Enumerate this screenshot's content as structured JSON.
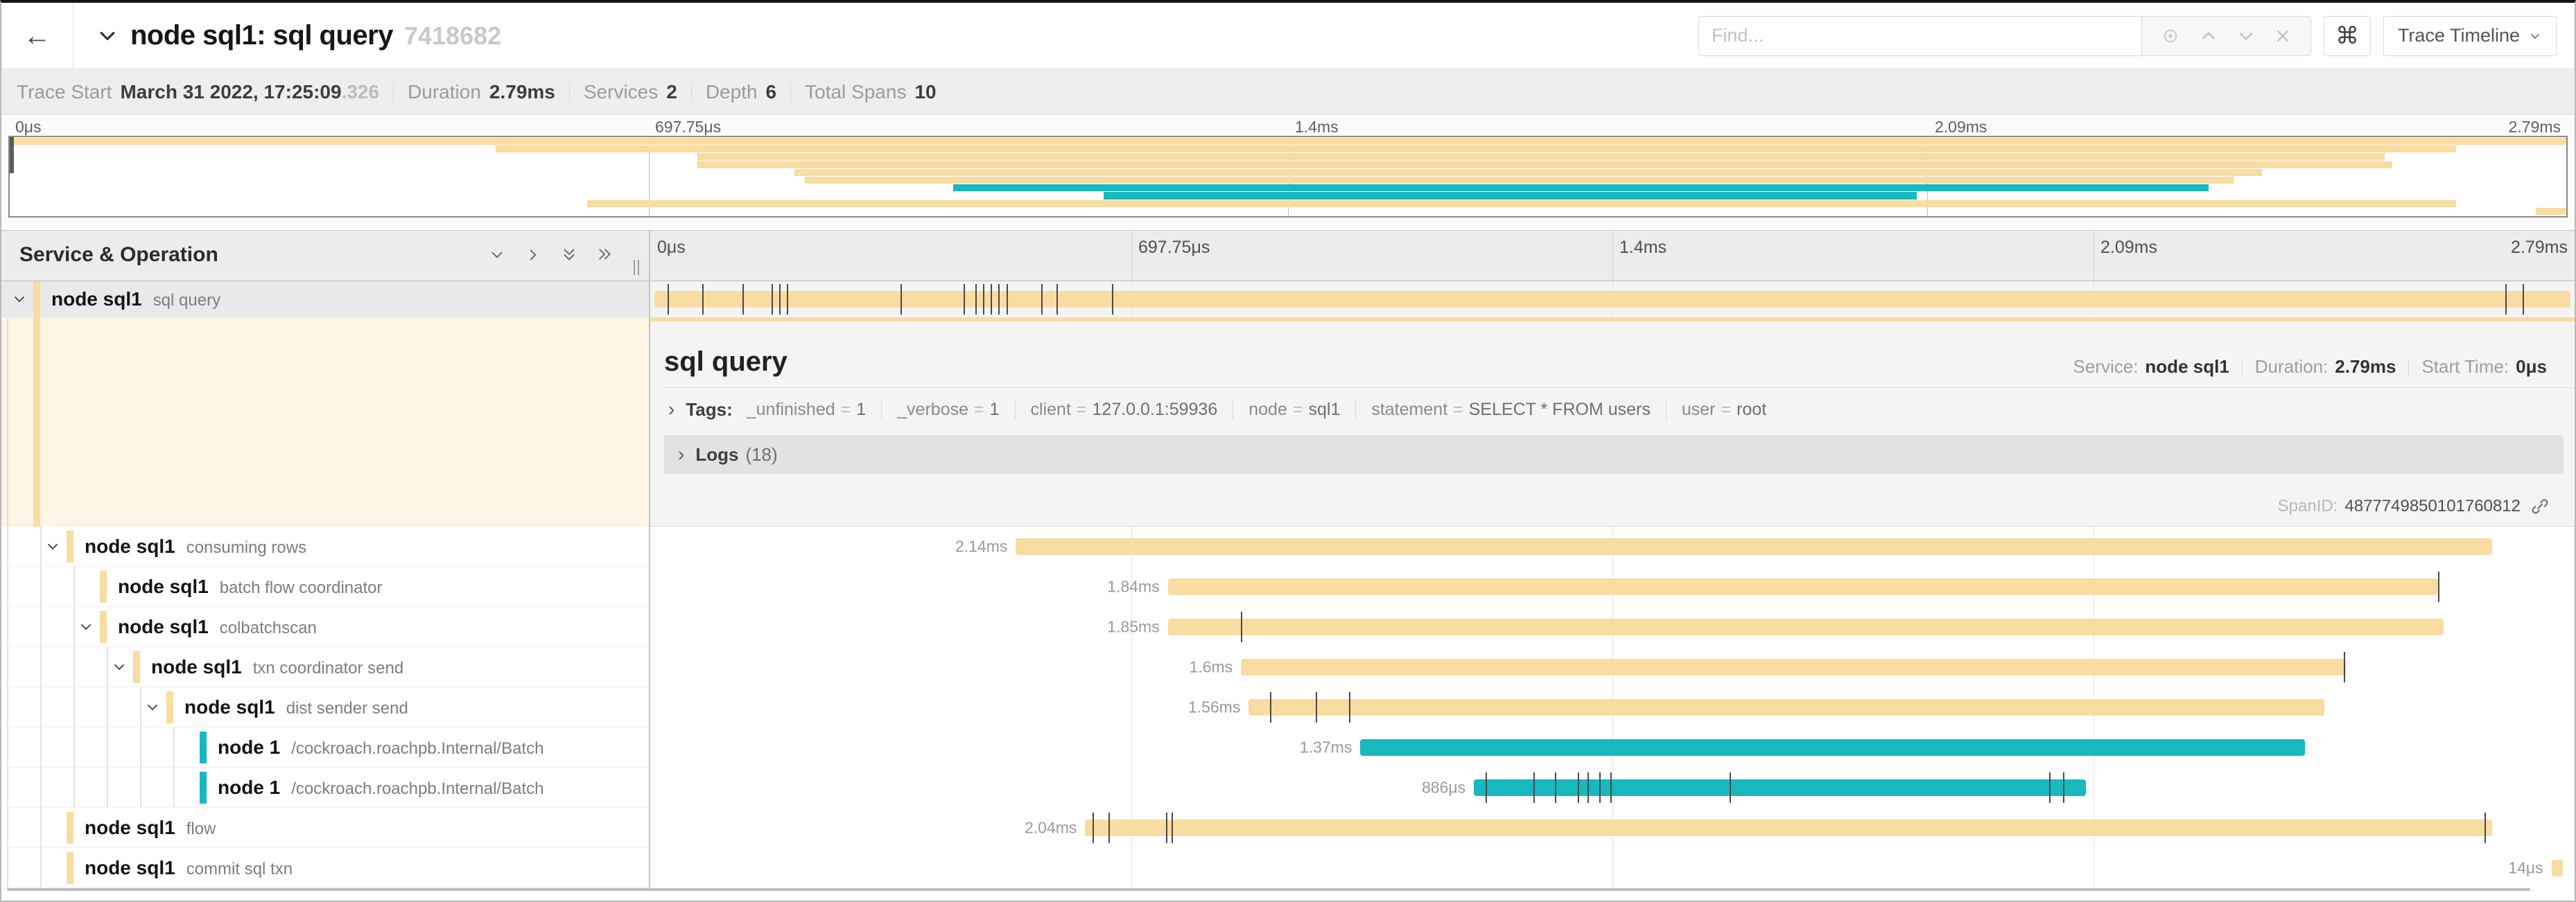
{
  "colors": {
    "tan": "#F8DCA1",
    "teal": "#17B8BE",
    "tick": "#4a4a4a"
  },
  "header": {
    "back_icon": "←",
    "title": "node sql1: sql query",
    "trace_id": "7418682",
    "find_placeholder": "Find...",
    "command_symbol": "⌘",
    "view_button": "Trace Timeline"
  },
  "trace_info": {
    "trace_start_label": "Trace Start",
    "trace_start_value": "March 31 2022, 17:25:09",
    "trace_start_fraction": ".326",
    "duration_label": "Duration",
    "duration_value": "2.79ms",
    "services_label": "Services",
    "services_value": "2",
    "depth_label": "Depth",
    "depth_value": "6",
    "total_spans_label": "Total Spans",
    "total_spans_value": "10"
  },
  "axis_ticks": [
    "0μs",
    "697.75μs",
    "1.4ms",
    "2.09ms",
    "2.79ms"
  ],
  "left_header": "Service & Operation",
  "minimap_rows": [
    {
      "start": 0,
      "width": 100,
      "color": "tan"
    },
    {
      "start": 19.0,
      "width": 76.7,
      "color": "tan"
    },
    {
      "start": 26.9,
      "width": 66.0,
      "color": "tan"
    },
    {
      "start": 26.9,
      "width": 66.3,
      "color": "tan"
    },
    {
      "start": 30.7,
      "width": 57.4,
      "color": "tan"
    },
    {
      "start": 31.1,
      "width": 55.9,
      "color": "tan"
    },
    {
      "start": 36.9,
      "width": 49.1,
      "color": "teal"
    },
    {
      "start": 42.8,
      "width": 31.8,
      "color": "teal"
    },
    {
      "start": 22.6,
      "width": 73.1,
      "color": "tan"
    },
    {
      "start": 98.8,
      "width": 1.2,
      "color": "tan"
    }
  ],
  "spans": [
    {
      "service": "node sql1",
      "operation": "sql query",
      "level": 0,
      "color": "tan",
      "chevron": true,
      "selected": true,
      "duration": "",
      "start": 0.2,
      "width": 99.6,
      "ticks": [
        0.9,
        2.7,
        4.8,
        6.3,
        6.7,
        7.1,
        13.0,
        16.3,
        16.9,
        17.3,
        17.7,
        18.1,
        18.5,
        20.3,
        21.1,
        24.0,
        96.4,
        97.3
      ]
    },
    {
      "service": "node sql1",
      "operation": "consuming rows",
      "level": 1,
      "color": "tan",
      "chevron": true,
      "duration": "2.14ms",
      "start": 19.0,
      "width": 76.7,
      "ticks": []
    },
    {
      "service": "node sql1",
      "operation": "batch flow coordinator",
      "level": 2,
      "color": "tan",
      "chevron": false,
      "duration": "1.84ms",
      "start": 26.9,
      "width": 66.0,
      "ticks": [
        92.9
      ]
    },
    {
      "service": "node sql1",
      "operation": "colbatchscan",
      "level": 2,
      "color": "tan",
      "chevron": true,
      "duration": "1.85ms",
      "start": 26.9,
      "width": 66.3,
      "ticks": [
        30.7
      ]
    },
    {
      "service": "node sql1",
      "operation": "txn coordinator send",
      "level": 3,
      "color": "tan",
      "chevron": true,
      "duration": "1.6ms",
      "start": 30.7,
      "width": 57.4,
      "ticks": [
        88.0
      ]
    },
    {
      "service": "node sql1",
      "operation": "dist sender send",
      "level": 4,
      "color": "tan",
      "chevron": true,
      "duration": "1.56ms",
      "start": 31.1,
      "width": 55.9,
      "ticks": [
        32.2,
        34.6,
        36.3
      ]
    },
    {
      "service": "node 1",
      "operation": "/cockroach.roachpb.Internal/Batch",
      "level": 5,
      "color": "teal",
      "chevron": false,
      "duration": "1.37ms",
      "start": 36.9,
      "width": 49.1,
      "ticks": []
    },
    {
      "service": "node 1",
      "operation": "/cockroach.roachpb.Internal/Batch",
      "level": 5,
      "color": "teal",
      "chevron": false,
      "duration": "886μs",
      "start": 42.8,
      "width": 31.8,
      "ticks": [
        43.4,
        45.9,
        47.0,
        48.2,
        48.7,
        49.3,
        49.9,
        56.1,
        72.7,
        73.4
      ]
    },
    {
      "service": "node sql1",
      "operation": "flow",
      "level": 1,
      "color": "tan",
      "chevron": false,
      "duration": "2.04ms",
      "start": 22.6,
      "width": 73.1,
      "ticks": [
        23.0,
        23.8,
        26.8,
        27.1,
        95.3
      ]
    },
    {
      "service": "node sql1",
      "operation": "commit sql txn",
      "level": 1,
      "color": "tan",
      "chevron": false,
      "duration": "14μs",
      "start": 98.8,
      "width": 0.6,
      "ticks": []
    }
  ],
  "detail": {
    "title": "sql query",
    "service_label": "Service:",
    "service_value": "node sql1",
    "duration_label": "Duration:",
    "duration_value": "2.79ms",
    "start_label": "Start Time:",
    "start_value": "0μs",
    "tags_label": "Tags:",
    "tags": [
      {
        "key": "_unfinished",
        "value": "1"
      },
      {
        "key": "_verbose",
        "value": "1"
      },
      {
        "key": "client",
        "value": "127.0.0.1:59936"
      },
      {
        "key": "node",
        "value": "sql1"
      },
      {
        "key": "statement",
        "value": "SELECT * FROM users"
      },
      {
        "key": "user",
        "value": "root"
      }
    ],
    "logs_label": "Logs",
    "logs_count": "(18)",
    "spanid_label": "SpanID:",
    "spanid_value": "4877749850101760812"
  }
}
